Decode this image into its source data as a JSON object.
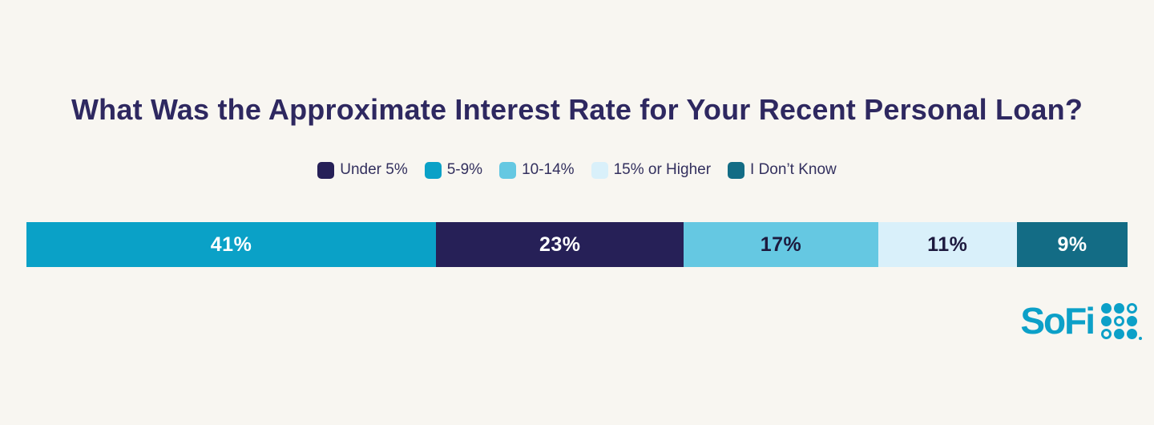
{
  "background_color": "#F8F6F1",
  "title": {
    "text": "What Was the Approximate Interest Rate for Your Recent Personal Loan?",
    "color": "#2E2860"
  },
  "legend": {
    "items": [
      {
        "label": "Under 5%",
        "color": "#262057"
      },
      {
        "label": "5-9%",
        "color": "#0AA1C7"
      },
      {
        "label": "10-14%",
        "color": "#65C8E2"
      },
      {
        "label": "15% or Higher",
        "color": "#D9F0FA"
      },
      {
        "label": "I Don’t Know",
        "color": "#136C85"
      }
    ]
  },
  "chart_data": {
    "type": "bar",
    "variant": "horizontal-100pct-stacked",
    "title": "What Was the Approximate Interest Rate for Your Recent Personal Loan?",
    "categories": [
      "5-9%",
      "Under 5%",
      "10-14%",
      "15% or Higher",
      "I Don’t Know"
    ],
    "values": [
      41,
      23,
      17,
      11,
      9
    ],
    "unit": "%",
    "segments": [
      {
        "label": "5-9%",
        "value": 41,
        "display": "41%",
        "color": "#0AA1C7",
        "text_color": "#FFFFFF"
      },
      {
        "label": "Under 5%",
        "value": 23,
        "display": "23%",
        "color": "#262057",
        "text_color": "#FFFFFF"
      },
      {
        "label": "10-14%",
        "value": 17,
        "display": "17%",
        "color": "#65C8E2",
        "text_color": "#1D1A3E"
      },
      {
        "label": "15% or Higher",
        "value": 11,
        "display": "11%",
        "color": "#D9F0FA",
        "text_color": "#1D1A3E"
      },
      {
        "label": "I Don’t Know",
        "value": 9,
        "display": "9%",
        "color": "#136C85",
        "text_color": "#FFFFFF"
      }
    ],
    "legend_position": "top",
    "grid": false,
    "axes": "none",
    "xlabel": "",
    "ylabel": ""
  },
  "branding": {
    "logo_text": "SoFi",
    "logo_color": "#0CA0C8",
    "logo_mark": "sofi-dots-grid-icon",
    "logo_mark_pattern": [
      "f",
      "f",
      "o",
      "f",
      "o",
      "f",
      "o",
      "f",
      "f"
    ]
  }
}
